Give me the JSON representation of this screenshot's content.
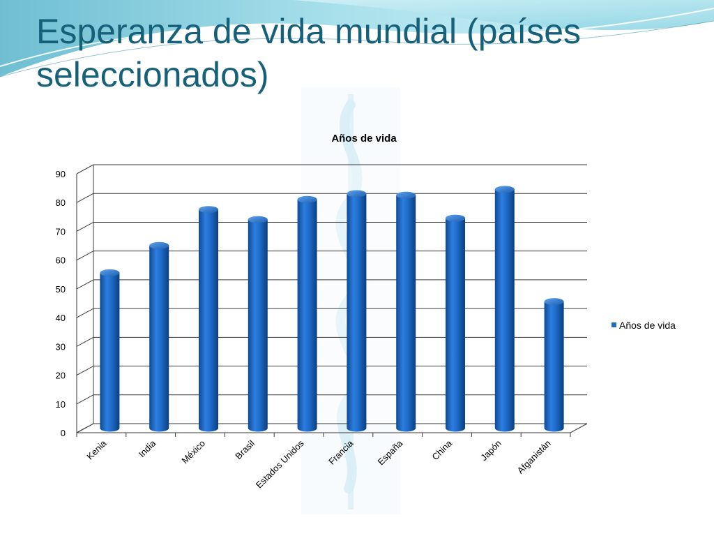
{
  "slide": {
    "title": "Esperanza de vida mundial (países seleccionados)"
  },
  "colors": {
    "title": "#17607a",
    "bar": "#1f6cc6",
    "accent_wave": "#5cc3d6"
  },
  "chart_data": {
    "type": "bar",
    "title": "Años de vida",
    "categories": [
      "Kenia",
      "India",
      "México",
      "Brasil",
      "Estados Unidos",
      "Francia",
      "España",
      "China",
      "Japón",
      "Afganistán"
    ],
    "series": [
      {
        "name": "Años de vida",
        "values": [
          54,
          63.5,
          76,
          72.5,
          79.5,
          81.5,
          81,
          73,
          83,
          44
        ]
      }
    ],
    "yticks": [
      0,
      10,
      20,
      30,
      40,
      50,
      60,
      70,
      80,
      90
    ],
    "ylim": [
      0,
      90
    ],
    "grid": true,
    "legend": "right",
    "style": "3d-cylinder"
  }
}
